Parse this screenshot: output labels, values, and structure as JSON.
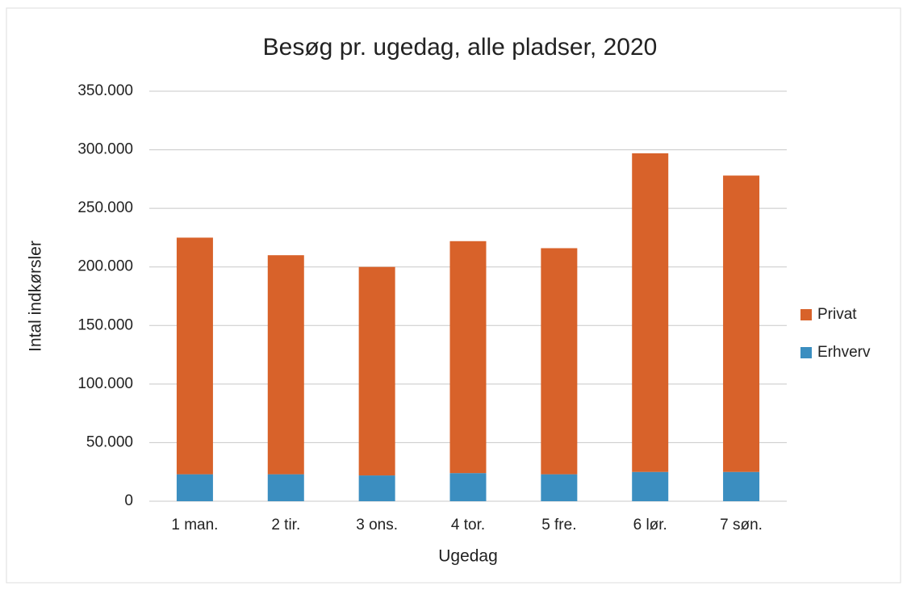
{
  "chart_data": {
    "type": "stacked_bar",
    "title": "Besøg pr. ugedag, alle pladser, 2020",
    "x_label": "Ugedag",
    "y_label": "Intal indkørsler",
    "categories": [
      "1 man.",
      "2 tir.",
      "3 ons.",
      "4 tor.",
      "5 fre.",
      "6 lør.",
      "7 søn."
    ],
    "series": [
      {
        "name": "Erhverv",
        "color": "#3b8ec0",
        "values": [
          23000,
          23000,
          22000,
          24000,
          23000,
          25000,
          25000
        ]
      },
      {
        "name": "Privat",
        "color": "#d8622a",
        "values": [
          202000,
          187000,
          178000,
          198000,
          193000,
          272000,
          253000
        ]
      }
    ],
    "ylim": [
      0,
      350000
    ],
    "yticks": [
      0,
      {
        "value": 50000,
        "label": "50.000"
      },
      {
        "value": 100000,
        "label": "100.000"
      },
      {
        "value": 150000,
        "label": "150.000"
      },
      {
        "value": 200000,
        "label": "200.000"
      },
      {
        "value": 250000,
        "label": "250.000"
      },
      {
        "value": 300000,
        "label": "300.000"
      },
      {
        "value": 350000,
        "label": "350.000"
      }
    ],
    "grid": true,
    "legend": "right"
  }
}
